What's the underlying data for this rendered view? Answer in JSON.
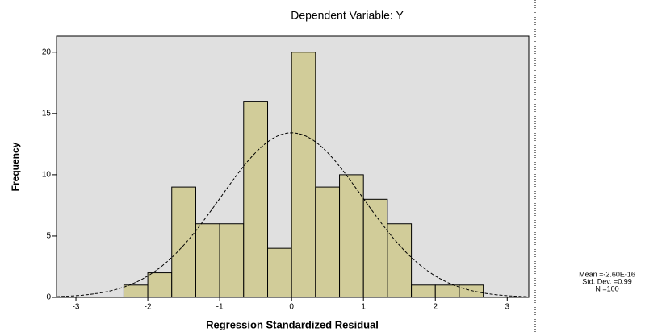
{
  "chart_data": {
    "type": "histogram",
    "title": "Dependent Variable: Y",
    "x_label": "Regression Standardized Residual",
    "y_label": "Frequency",
    "bins": [
      -2.333,
      -2,
      -1.667,
      -1.333,
      -1,
      -0.667,
      -0.333,
      0,
      0.333,
      0.667,
      1,
      1.333,
      1.667,
      2,
      2.333,
      2.667
    ],
    "values": [
      1,
      2,
      9,
      6,
      6,
      16,
      4,
      20,
      9,
      10,
      8,
      6,
      1,
      1,
      1
    ],
    "color": "#d1cc99",
    "xlim": [
      -3.27,
      3.3
    ],
    "xticks": [
      -3,
      -2,
      -1,
      0,
      1,
      2,
      3
    ],
    "ylim": [
      0,
      21.3
    ],
    "yticks": [
      0,
      5,
      10,
      15,
      20
    ],
    "stats": {
      "mean": -2.6e-16,
      "std_dev": 0.99,
      "n": 100,
      "labels": [
        "Mean =-2.60E-16",
        "Std. Dev. =0.99",
        "N =100"
      ]
    }
  }
}
